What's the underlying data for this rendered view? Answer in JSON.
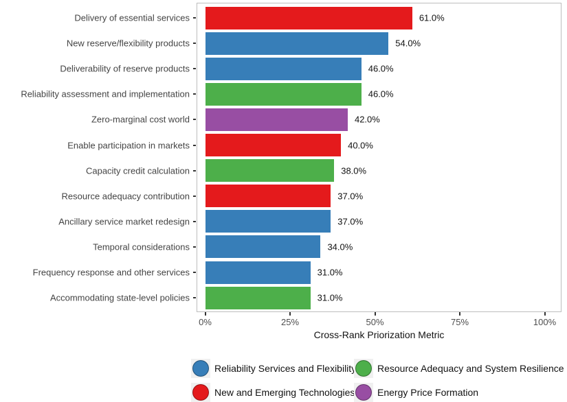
{
  "chart_data": {
    "type": "bar",
    "orientation": "horizontal",
    "title": "",
    "xlabel": "Cross-Rank Priorization Metric",
    "ylabel": "",
    "xlim": [
      0,
      107
    ],
    "grid": false,
    "legend_position": "bottom",
    "x_ticks": [
      {
        "value": 0,
        "label": "0%"
      },
      {
        "value": 25,
        "label": "25%"
      },
      {
        "value": 50,
        "label": "50%"
      },
      {
        "value": 75,
        "label": "75%"
      },
      {
        "value": 100,
        "label": "100%"
      }
    ],
    "bars": [
      {
        "label": "Delivery of essential services",
        "value": 61.0,
        "value_label": "61.0%",
        "group": "New and Emerging Technologies"
      },
      {
        "label": "New reserve/flexibility products",
        "value": 54.0,
        "value_label": "54.0%",
        "group": "Reliability Services and Flexibility"
      },
      {
        "label": "Deliverability of reserve products",
        "value": 46.0,
        "value_label": "46.0%",
        "group": "Reliability Services and Flexibility"
      },
      {
        "label": "Reliability assessment and implementation",
        "value": 46.0,
        "value_label": "46.0%",
        "group": "Resource Adequacy and System Resilience"
      },
      {
        "label": "Zero-marginal cost world",
        "value": 42.0,
        "value_label": "42.0%",
        "group": "Energy Price Formation"
      },
      {
        "label": "Enable participation in markets",
        "value": 40.0,
        "value_label": "40.0%",
        "group": "New and Emerging Technologies"
      },
      {
        "label": "Capacity credit calculation",
        "value": 38.0,
        "value_label": "38.0%",
        "group": "Resource Adequacy and System Resilience"
      },
      {
        "label": "Resource adequacy contribution",
        "value": 37.0,
        "value_label": "37.0%",
        "group": "New and Emerging Technologies"
      },
      {
        "label": "Ancillary service market redesign",
        "value": 37.0,
        "value_label": "37.0%",
        "group": "Reliability Services and Flexibility"
      },
      {
        "label": "Temporal considerations",
        "value": 34.0,
        "value_label": "34.0%",
        "group": "Reliability Services and Flexibility"
      },
      {
        "label": "Frequency response and other services",
        "value": 31.0,
        "value_label": "31.0%",
        "group": "Reliability Services and Flexibility"
      },
      {
        "label": "Accommodating state-level policies",
        "value": 31.0,
        "value_label": "31.0%",
        "group": "Resource Adequacy and System Resilience"
      }
    ],
    "legend": [
      {
        "label": "Reliability Services and Flexibility",
        "color": "#377EB8"
      },
      {
        "label": "Resource Adequacy and System Resilience",
        "color": "#4DAF4A"
      },
      {
        "label": "New and Emerging Technologies",
        "color": "#E41A1C"
      },
      {
        "label": "Energy Price Formation",
        "color": "#984EA3"
      }
    ],
    "colors": {
      "Reliability Services and Flexibility": "#377EB8",
      "Resource Adequacy and System Resilience": "#4DAF4A",
      "New and Emerging Technologies": "#E41A1C",
      "Energy Price Formation": "#984EA3"
    },
    "panel_border_color": "#bdbdbd"
  }
}
